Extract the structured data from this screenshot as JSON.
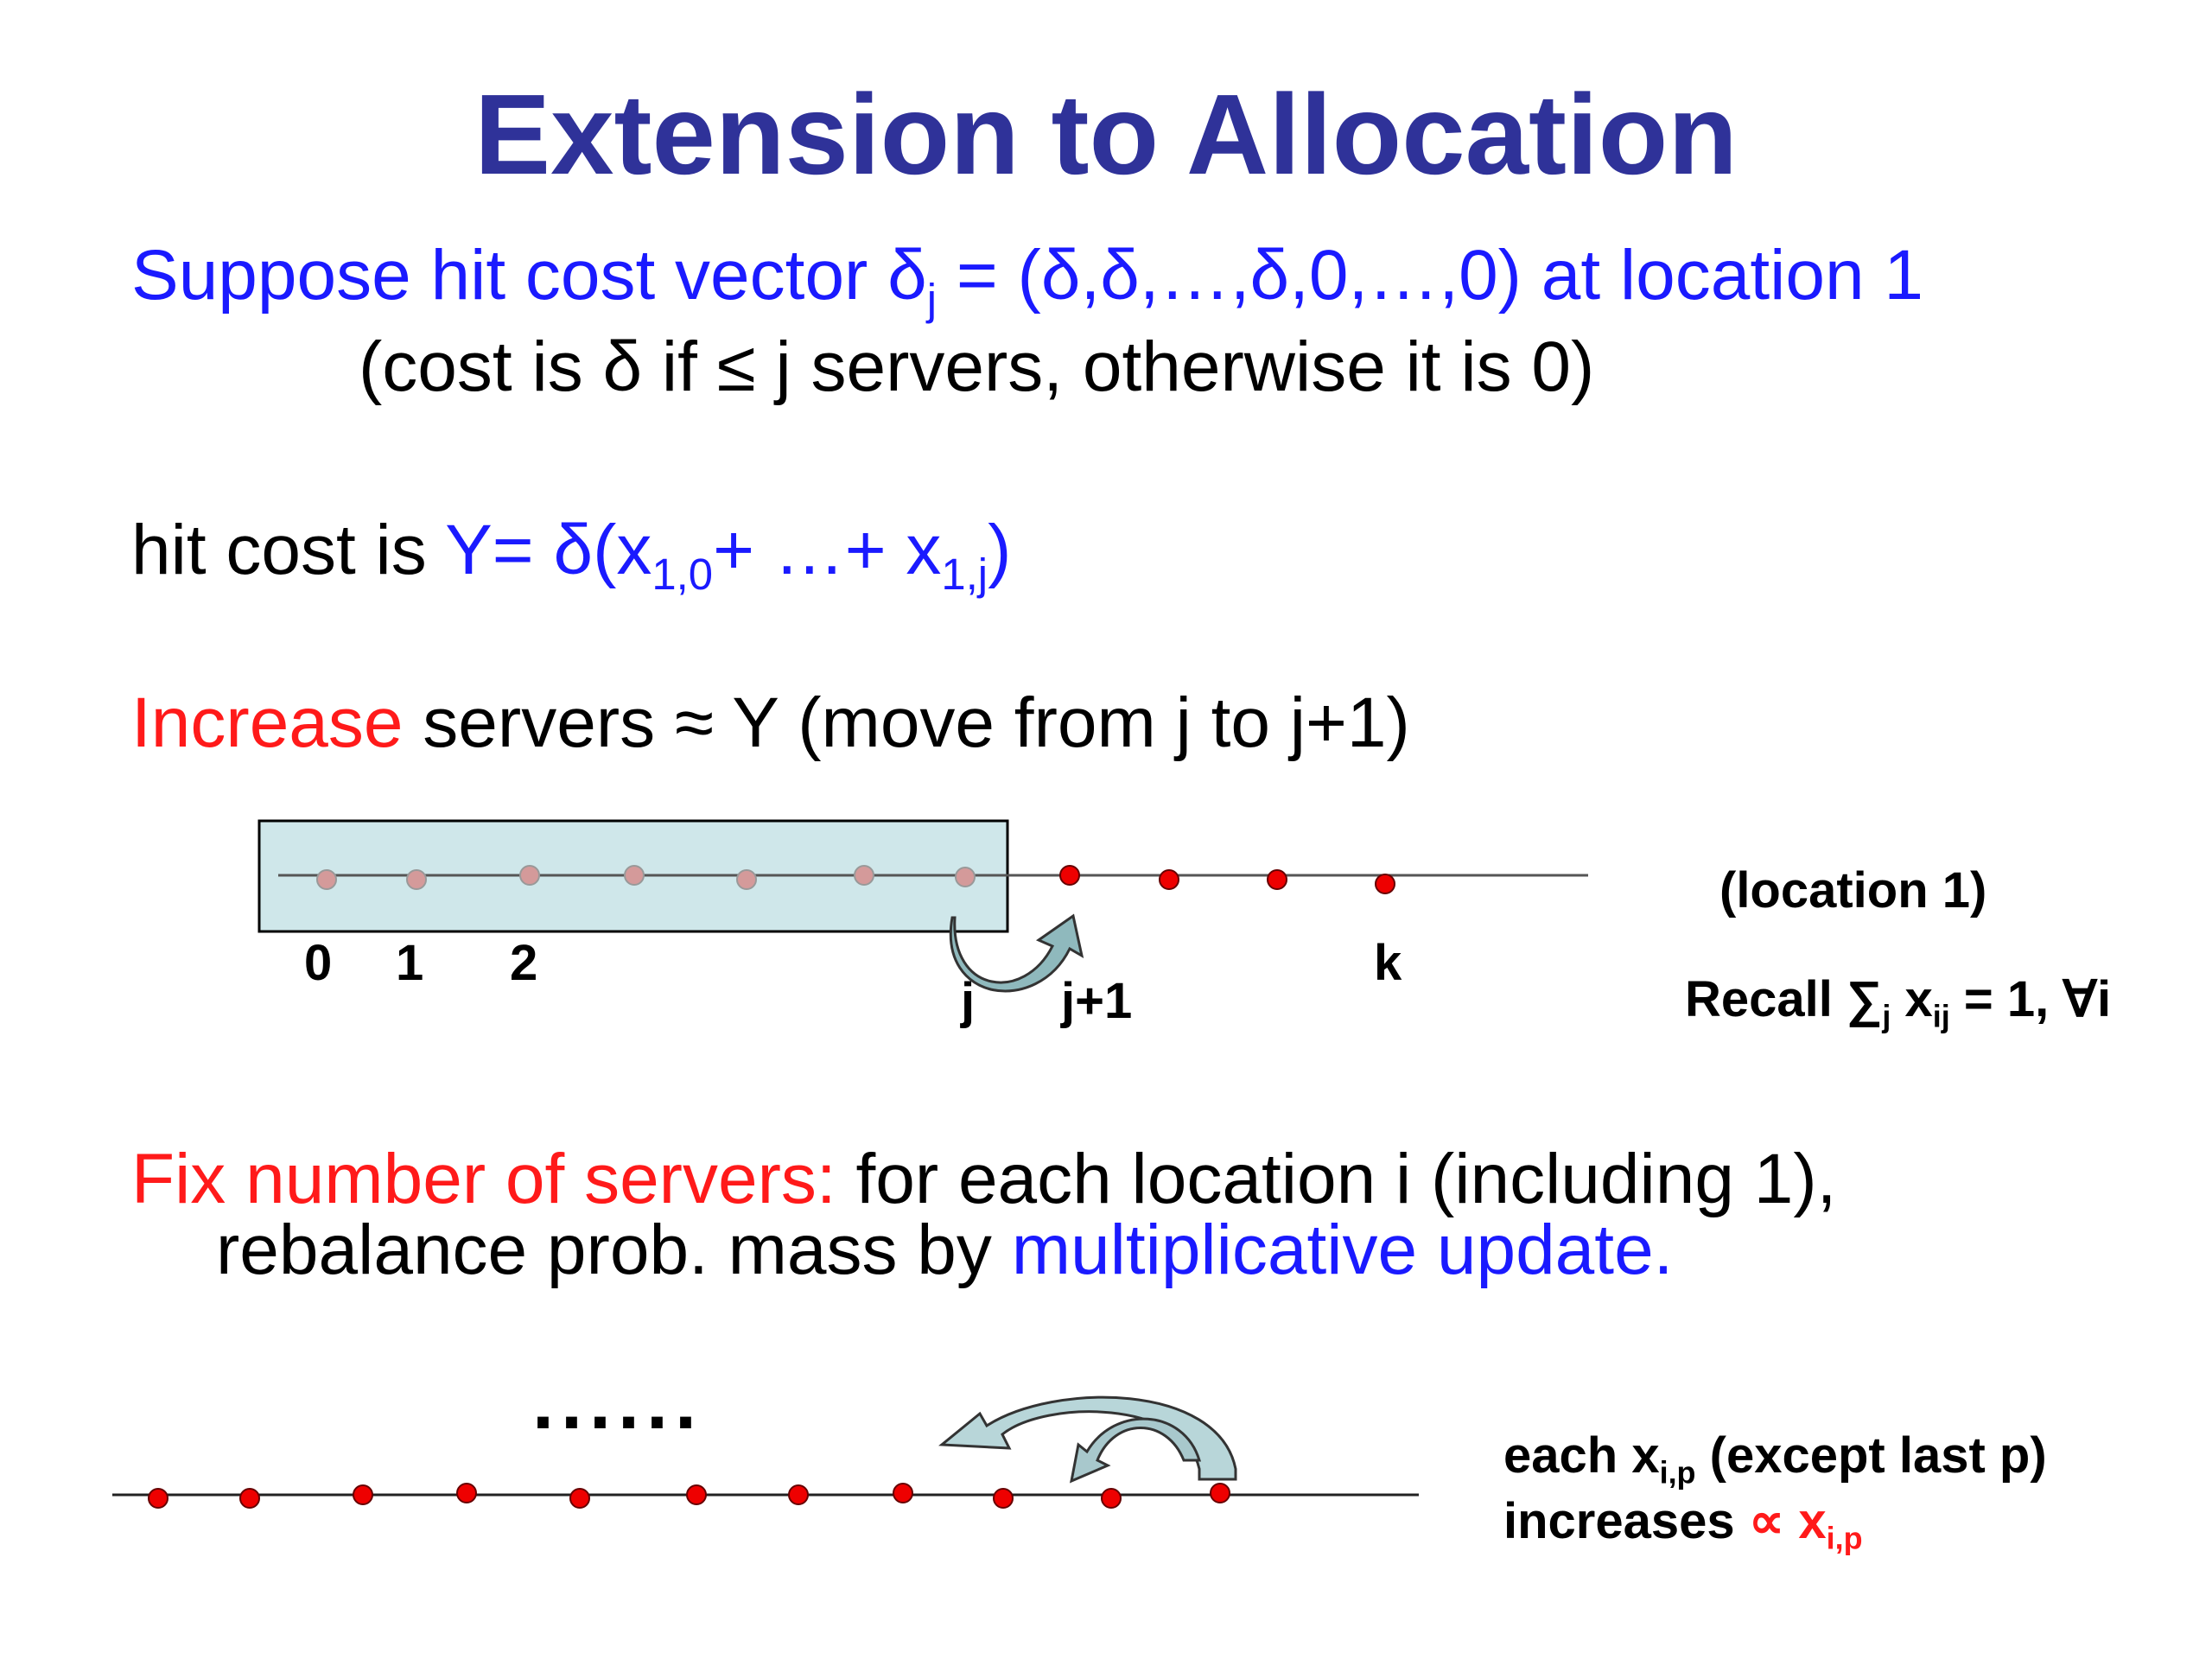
{
  "slide": {
    "title": "Extension to Allocation",
    "colors": {
      "title": "#2f3299",
      "blue": "#1a1aff",
      "red": "#ff1a1a"
    }
  },
  "line1": {
    "part1": "Suppose hit cost vector δ",
    "sub": "j",
    "part2": " = (δ,δ,…,δ,0,…,0) at location 1"
  },
  "line2": {
    "text": "(cost is δ if ≤ j servers, otherwise it is 0)"
  },
  "line3": {
    "prefix": "hit cost is ",
    "part1": "Y= δ(x",
    "sub1": "1,0",
    "part2": "+ …+ x",
    "sub2": "1,j",
    "part3": ")"
  },
  "line4": {
    "red": "Increase",
    "rest": " servers ≈ Y (move from j to j+1)"
  },
  "diagram1": {
    "labels": {
      "zero": "0",
      "one": "1",
      "two": "2",
      "j": "j",
      "jplus1": "j+1",
      "k": "k"
    },
    "location_label": "(location 1)",
    "recall": {
      "part1": "Recall ∑",
      "sub1": "j",
      "part2": " x",
      "sub2": "ij",
      "part3": " = 1,  ∀i"
    }
  },
  "line5": {
    "red": "Fix number of servers:",
    "rest": " for each location i (including 1),"
  },
  "line6": {
    "part1": "rebalance prob. mass by ",
    "blue": "multiplicative update."
  },
  "diagram2": {
    "dots_text": "......",
    "note1": {
      "part1": "each x",
      "sub": "i,p",
      "part2": " (except last p)"
    },
    "note2": {
      "part1": "increases  ",
      "red_part": "∝ x",
      "red_sub": "i,p"
    }
  }
}
